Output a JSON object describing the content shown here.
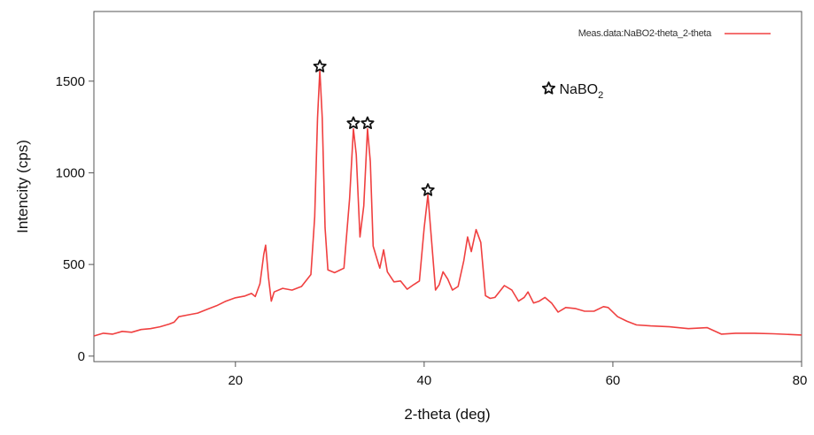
{
  "chart_data": {
    "type": "line",
    "title": "",
    "xlabel": "2-theta (deg)",
    "ylabel": "Intencity (cps)",
    "xlim": [
      5,
      80
    ],
    "ylim": [
      -30,
      1880
    ],
    "x_ticks": [
      20,
      40,
      60,
      80
    ],
    "y_ticks": [
      0,
      500,
      1000,
      1500
    ],
    "x_tick_labels": [
      "20",
      "40",
      "60",
      "80"
    ],
    "y_tick_labels": [
      "0",
      "500",
      "1000",
      "1500"
    ],
    "grid": false,
    "legend": {
      "placement": "top-right",
      "label": "Meas.data:NaBO2-theta_2-theta"
    },
    "series": [
      {
        "name": "Meas.data:NaBO2-theta_2-theta",
        "color": "#f04040",
        "points": [
          [
            5,
            110
          ],
          [
            6,
            125
          ],
          [
            7,
            120
          ],
          [
            8,
            135
          ],
          [
            9,
            130
          ],
          [
            10,
            145
          ],
          [
            11,
            150
          ],
          [
            12,
            160
          ],
          [
            13,
            175
          ],
          [
            13.5,
            185
          ],
          [
            14,
            215
          ],
          [
            15,
            225
          ],
          [
            16,
            235
          ],
          [
            17,
            255
          ],
          [
            18,
            275
          ],
          [
            19,
            300
          ],
          [
            20,
            318
          ],
          [
            21,
            328
          ],
          [
            21.7,
            342
          ],
          [
            22.1,
            325
          ],
          [
            22.6,
            395
          ],
          [
            23,
            555
          ],
          [
            23.2,
            605
          ],
          [
            23.5,
            430
          ],
          [
            23.8,
            300
          ],
          [
            24.1,
            350
          ],
          [
            25,
            370
          ],
          [
            26,
            360
          ],
          [
            27,
            380
          ],
          [
            28,
            445
          ],
          [
            28.4,
            760
          ],
          [
            28.7,
            1300
          ],
          [
            28.95,
            1560
          ],
          [
            29.2,
            1300
          ],
          [
            29.5,
            700
          ],
          [
            29.8,
            470
          ],
          [
            30.5,
            455
          ],
          [
            31.5,
            480
          ],
          [
            32.1,
            860
          ],
          [
            32.5,
            1240
          ],
          [
            32.8,
            1100
          ],
          [
            33.2,
            650
          ],
          [
            33.6,
            820
          ],
          [
            34,
            1240
          ],
          [
            34.3,
            1060
          ],
          [
            34.6,
            600
          ],
          [
            35,
            530
          ],
          [
            35.3,
            480
          ],
          [
            35.7,
            580
          ],
          [
            36.1,
            460
          ],
          [
            36.8,
            405
          ],
          [
            37.5,
            410
          ],
          [
            38.2,
            365
          ],
          [
            38.9,
            390
          ],
          [
            39.5,
            410
          ],
          [
            40,
            700
          ],
          [
            40.4,
            880
          ],
          [
            40.8,
            620
          ],
          [
            41.2,
            360
          ],
          [
            41.6,
            390
          ],
          [
            42,
            460
          ],
          [
            42.5,
            420
          ],
          [
            43,
            360
          ],
          [
            43.6,
            380
          ],
          [
            44.2,
            520
          ],
          [
            44.6,
            650
          ],
          [
            45,
            570
          ],
          [
            45.5,
            690
          ],
          [
            46,
            620
          ],
          [
            46.5,
            330
          ],
          [
            47,
            315
          ],
          [
            47.5,
            320
          ],
          [
            48.5,
            385
          ],
          [
            49.3,
            360
          ],
          [
            50,
            300
          ],
          [
            50.6,
            320
          ],
          [
            51,
            350
          ],
          [
            51.6,
            290
          ],
          [
            52.2,
            300
          ],
          [
            52.8,
            320
          ],
          [
            53.5,
            290
          ],
          [
            54.2,
            240
          ],
          [
            55,
            265
          ],
          [
            56,
            260
          ],
          [
            57,
            245
          ],
          [
            58,
            245
          ],
          [
            59,
            270
          ],
          [
            59.5,
            265
          ],
          [
            60.5,
            215
          ],
          [
            61.5,
            190
          ],
          [
            62.5,
            170
          ],
          [
            64,
            165
          ],
          [
            66,
            160
          ],
          [
            68,
            150
          ],
          [
            70,
            155
          ],
          [
            71.5,
            120
          ],
          [
            73,
            125
          ],
          [
            75,
            125
          ],
          [
            77,
            122
          ],
          [
            80,
            115
          ]
        ]
      }
    ],
    "markers": [
      {
        "symbol": "star",
        "x": 28.95,
        "y": 1580
      },
      {
        "symbol": "star",
        "x": 32.5,
        "y": 1270
      },
      {
        "symbol": "star",
        "x": 34.0,
        "y": 1270
      },
      {
        "symbol": "star",
        "x": 40.4,
        "y": 905
      }
    ],
    "annotations": [
      {
        "symbol": "star",
        "text": "NaBO",
        "subscript": "2",
        "x": 53.2,
        "y": 1460
      }
    ]
  }
}
